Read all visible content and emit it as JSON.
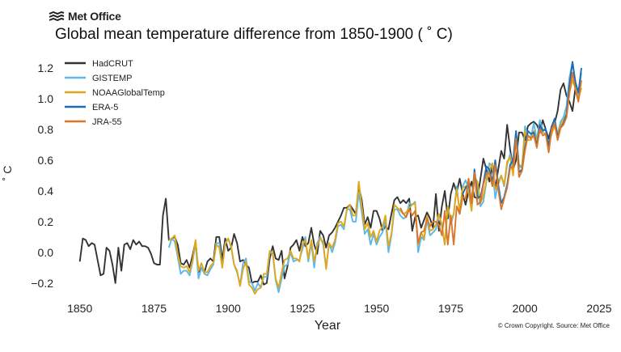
{
  "brand": {
    "name": "Met Office"
  },
  "credit": "© Crown Copyright. Source: Met Office",
  "chart_data": {
    "type": "line",
    "title": "Global mean temperature difference from 1850-1900 ( ˚ C)",
    "xlabel": "Year",
    "ylabel": "˚ C",
    "xlim": [
      1843,
      2028
    ],
    "ylim": [
      -0.28,
      1.3
    ],
    "xticks": [
      1850,
      1875,
      1900,
      1925,
      1950,
      1975,
      2000,
      2025
    ],
    "yticks": [
      -0.2,
      0.0,
      0.2,
      0.4,
      0.6,
      0.8,
      1.0,
      1.2
    ],
    "ytick_labels": [
      "−0.2",
      "0.0",
      "0.2",
      "0.4",
      "0.6",
      "0.8",
      "1.0",
      "1.2"
    ],
    "grid": false,
    "legend_position": "top-left",
    "series": [
      {
        "name": "HadCRUT",
        "color": "#333333",
        "start": 1850,
        "values": [
          -0.06,
          0.09,
          0.08,
          0.04,
          0.06,
          0.05,
          -0.05,
          -0.15,
          -0.14,
          0.03,
          0.01,
          -0.08,
          -0.2,
          0.03,
          -0.12,
          0.05,
          0.06,
          0.02,
          0.08,
          0.05,
          0.07,
          0.04,
          0.04,
          0.03,
          -0.01,
          -0.07,
          -0.08,
          -0.08,
          0.24,
          0.35,
          0.08,
          0.09,
          0.1,
          0.05,
          -0.07,
          -0.08,
          -0.05,
          -0.1,
          -0.02,
          0.07,
          -0.13,
          -0.1,
          -0.13,
          -0.06,
          -0.04,
          -0.06,
          0.1,
          0.1,
          -0.05,
          0.09,
          0.01,
          0.03,
          0.12,
          0.06,
          -0.06,
          -0.05,
          -0.08,
          -0.1,
          -0.2,
          -0.19,
          -0.19,
          -0.15,
          -0.21,
          -0.2,
          -0.04,
          0.04,
          -0.04,
          -0.05,
          0.01,
          -0.17,
          -0.09,
          0.03,
          0.05,
          0.08,
          0.01,
          0.1,
          0.04,
          0.06,
          0.16,
          0.05,
          -0.01,
          0.14,
          0.11,
          0.03,
          0.11,
          0.13,
          0.16,
          0.2,
          0.24,
          0.29,
          0.29,
          0.31,
          0.28,
          0.25,
          0.43,
          0.34,
          0.18,
          0.23,
          0.16,
          0.27,
          0.27,
          0.22,
          0.14,
          0.17,
          0.15,
          0.25,
          0.34,
          0.36,
          0.32,
          0.34,
          0.32,
          0.35,
          0.14,
          0.23,
          0.24,
          0.16,
          0.21,
          0.26,
          0.22,
          0.16,
          0.38,
          0.14,
          0.3,
          0.4,
          0.22,
          0.38,
          0.45,
          0.39,
          0.48,
          0.38,
          0.31,
          0.4,
          0.46,
          0.36,
          0.35,
          0.48,
          0.61,
          0.54,
          0.46,
          0.56,
          0.42,
          0.54,
          0.66,
          0.61,
          0.83,
          0.67,
          0.54,
          0.6,
          0.78,
          0.78,
          0.73,
          0.82,
          0.84,
          0.85,
          0.83,
          0.78,
          0.86,
          0.8,
          0.74,
          0.82,
          0.84,
          0.92,
          1.06,
          1.1,
          1.02,
          0.98,
          0.92,
          1.07
        ]
      },
      {
        "name": "GISTEMP",
        "color": "#5bb8ea",
        "start": 1880,
        "values": [
          0.03,
          0.09,
          0.07,
          -0.03,
          -0.14,
          -0.12,
          -0.12,
          -0.15,
          -0.06,
          0.06,
          -0.17,
          -0.1,
          -0.14,
          -0.15,
          -0.11,
          -0.08,
          0.06,
          0.06,
          -0.1,
          0.06,
          0.09,
          0.03,
          -0.08,
          -0.13,
          -0.21,
          -0.07,
          -0.04,
          -0.19,
          -0.2,
          -0.25,
          -0.2,
          -0.23,
          -0.16,
          -0.16,
          0.0,
          -0.01,
          -0.18,
          -0.26,
          -0.17,
          -0.09,
          -0.08,
          0.0,
          -0.06,
          -0.05,
          -0.05,
          0.02,
          0.1,
          -0.06,
          0.06,
          -0.1,
          0.06,
          0.1,
          0.05,
          -0.1,
          0.06,
          0.0,
          0.06,
          0.17,
          0.18,
          0.15,
          0.28,
          0.28,
          0.2,
          0.2,
          0.39,
          0.26,
          0.12,
          0.15,
          0.05,
          0.12,
          0.05,
          0.1,
          0.13,
          0.21,
          0.0,
          0.11,
          0.28,
          0.28,
          0.24,
          0.22,
          0.23,
          0.32,
          0.31,
          0.33,
          0.0,
          0.1,
          0.08,
          0.21,
          0.11,
          0.13,
          0.15,
          0.25,
          0.17,
          0.05,
          0.3,
          0.18,
          0.25,
          0.43,
          0.26,
          0.43,
          0.47,
          0.42,
          0.28,
          0.5,
          0.42,
          0.3,
          0.33,
          0.46,
          0.58,
          0.56,
          0.35,
          0.46,
          0.5,
          0.43,
          0.57,
          0.64,
          0.53,
          0.79,
          0.56,
          0.55,
          0.82,
          0.76,
          0.75,
          0.84,
          0.73,
          0.86,
          0.8,
          0.8,
          0.69,
          0.79,
          0.86,
          0.77,
          0.85,
          0.88,
          0.95,
          1.14,
          1.24,
          1.1,
          1.02,
          1.17
        ]
      },
      {
        "name": "NOAAGlobalTemp",
        "color": "#e0a71a",
        "start": 1880,
        "values": [
          0.08,
          0.09,
          0.11,
          -0.01,
          -0.09,
          -0.1,
          -0.09,
          -0.13,
          -0.05,
          0.08,
          -0.12,
          -0.07,
          -0.13,
          -0.13,
          -0.09,
          -0.07,
          0.05,
          0.03,
          -0.1,
          0.05,
          0.09,
          0.04,
          -0.08,
          -0.12,
          -0.22,
          -0.11,
          -0.06,
          -0.21,
          -0.23,
          -0.27,
          -0.24,
          -0.23,
          -0.14,
          -0.14,
          0.01,
          0.0,
          -0.17,
          -0.23,
          -0.13,
          -0.05,
          -0.04,
          0.01,
          -0.04,
          -0.04,
          -0.06,
          0.05,
          0.08,
          -0.04,
          0.08,
          -0.06,
          0.04,
          0.09,
          0.07,
          -0.11,
          0.06,
          0.03,
          0.08,
          0.19,
          0.2,
          0.17,
          0.28,
          0.31,
          0.24,
          0.24,
          0.46,
          0.3,
          0.15,
          0.19,
          0.1,
          0.14,
          0.07,
          0.14,
          0.17,
          0.24,
          0.04,
          0.12,
          0.31,
          0.29,
          0.27,
          0.25,
          0.26,
          0.29,
          0.31,
          0.32,
          0.05,
          0.13,
          0.09,
          0.24,
          0.14,
          0.15,
          0.18,
          0.25,
          0.18,
          0.05,
          0.3,
          0.21,
          0.25,
          0.41,
          0.27,
          0.42,
          0.43,
          0.39,
          0.27,
          0.49,
          0.46,
          0.32,
          0.37,
          0.46,
          0.53,
          0.58,
          0.41,
          0.44,
          0.5,
          0.44,
          0.59,
          0.62,
          0.5,
          0.75,
          0.57,
          0.56,
          0.79,
          0.73,
          0.73,
          0.79,
          0.72,
          0.83,
          0.78,
          0.77,
          0.71,
          0.77,
          0.82,
          0.77,
          0.83,
          0.86,
          0.9,
          1.04,
          1.12,
          1.07,
          1.0,
          1.07
        ]
      },
      {
        "name": "ERA-5",
        "color": "#1c6bb5",
        "start": 1979,
        "values": [
          0.38,
          0.42,
          0.45,
          0.32,
          0.54,
          0.36,
          0.36,
          0.45,
          0.56,
          0.54,
          0.46,
          0.6,
          0.44,
          0.32,
          0.36,
          0.44,
          0.57,
          0.6,
          0.79,
          0.52,
          0.54,
          0.68,
          0.79,
          0.77,
          0.78,
          0.69,
          0.83,
          0.79,
          0.8,
          0.69,
          0.82,
          0.87,
          0.75,
          0.81,
          0.84,
          0.9,
          1.09,
          1.24,
          1.11,
          1.04,
          1.2
        ]
      },
      {
        "name": "JRA-55",
        "color": "#d8772a",
        "start": 1958,
        "values": [
          0.29,
          0.25,
          0.23,
          0.28,
          0.24,
          0.27,
          0.06,
          0.13,
          0.14,
          0.22,
          0.17,
          0.2,
          0.2,
          0.18,
          0.11,
          0.27,
          0.05,
          0.24,
          0.05,
          0.3,
          0.25,
          0.36,
          0.35,
          0.48,
          0.32,
          0.52,
          0.31,
          0.33,
          0.44,
          0.51,
          0.52,
          0.43,
          0.57,
          0.41,
          0.28,
          0.35,
          0.42,
          0.55,
          0.55,
          0.74,
          0.49,
          0.53,
          0.66,
          0.76,
          0.74,
          0.76,
          0.68,
          0.8,
          0.76,
          0.77,
          0.65,
          0.8,
          0.84,
          0.73,
          0.81,
          0.83,
          0.88,
          1.04,
          1.17,
          1.06,
          0.98,
          1.12
        ]
      }
    ]
  }
}
